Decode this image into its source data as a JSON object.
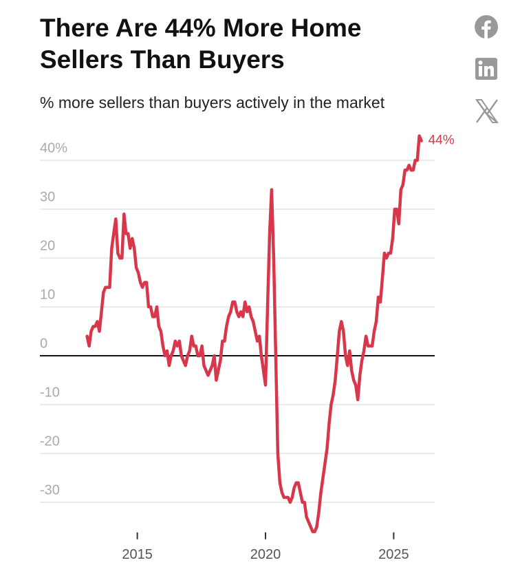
{
  "chart_data": {
    "type": "line",
    "title": "There Are 44% More Home Sellers Than Buyers",
    "subtitle": "% more sellers than buyers actively in the market",
    "xlim": [
      2011.2,
      2026.6
    ],
    "xticks": [
      2015,
      2020,
      2025
    ],
    "ylim": [
      -37,
      46
    ],
    "yticks": [
      {
        "value": 40,
        "label": "40%"
      },
      30,
      20,
      10,
      0,
      -10,
      -20,
      -30
    ],
    "grid": true,
    "series": [
      {
        "name": "% more sellers than buyers",
        "color": "#d8364b",
        "x": [
          2013.04,
          2013.12,
          2013.2,
          2013.28,
          2013.36,
          2013.44,
          2013.52,
          2013.6,
          2013.68,
          2013.76,
          2013.84,
          2013.92,
          2014,
          2014.08,
          2014.16,
          2014.24,
          2014.32,
          2014.4,
          2014.48,
          2014.56,
          2014.64,
          2014.72,
          2014.8,
          2014.88,
          2014.96,
          2015.04,
          2015.12,
          2015.2,
          2015.28,
          2015.36,
          2015.44,
          2015.52,
          2015.6,
          2015.68,
          2015.76,
          2015.84,
          2015.92,
          2016,
          2016.08,
          2016.16,
          2016.24,
          2016.32,
          2016.4,
          2016.48,
          2016.56,
          2016.64,
          2016.72,
          2016.8,
          2016.88,
          2016.96,
          2017.04,
          2017.12,
          2017.2,
          2017.28,
          2017.36,
          2017.44,
          2017.52,
          2017.6,
          2017.68,
          2017.76,
          2017.84,
          2017.92,
          2018,
          2018.08,
          2018.16,
          2018.24,
          2018.32,
          2018.4,
          2018.48,
          2018.56,
          2018.64,
          2018.72,
          2018.8,
          2018.88,
          2018.96,
          2019.04,
          2019.12,
          2019.2,
          2019.28,
          2019.36,
          2019.44,
          2019.52,
          2019.6,
          2019.68,
          2019.76,
          2019.84,
          2019.92,
          2020,
          2020.08,
          2020.16,
          2020.24,
          2020.32,
          2020.4,
          2020.48,
          2020.56,
          2020.64,
          2020.72,
          2020.8,
          2020.88,
          2020.96,
          2021.04,
          2021.12,
          2021.2,
          2021.28,
          2021.36,
          2021.44,
          2021.52,
          2021.6,
          2021.68,
          2021.76,
          2021.84,
          2021.92,
          2022,
          2022.08,
          2022.16,
          2022.24,
          2022.32,
          2022.4,
          2022.48,
          2022.56,
          2022.64,
          2022.72,
          2022.8,
          2022.88,
          2022.96,
          2023.04,
          2023.12,
          2023.2,
          2023.28,
          2023.36,
          2023.44,
          2023.52,
          2023.6,
          2023.68,
          2023.76,
          2023.84,
          2023.92,
          2024,
          2024.08,
          2024.16,
          2024.24,
          2024.32,
          2024.4,
          2024.48,
          2024.56,
          2024.64,
          2024.72,
          2024.8,
          2024.88,
          2024.96,
          2025.04,
          2025.12,
          2025.2,
          2025.28,
          2025.36,
          2025.44,
          2025.52,
          2025.6,
          2025.68,
          2025.76,
          2025.84,
          2025.92,
          2026,
          2026.08
        ],
        "values": [
          4,
          2,
          5,
          6,
          6,
          7,
          5,
          9,
          13,
          14,
          14,
          14,
          22,
          25,
          28,
          21,
          20,
          20,
          29,
          25,
          25,
          22,
          24,
          22,
          18,
          17,
          15,
          14,
          15,
          15,
          10,
          10,
          8,
          8,
          10,
          6,
          5,
          2,
          0,
          1,
          -2,
          0,
          1,
          3,
          2,
          3,
          0,
          -1,
          -2,
          0,
          1,
          4,
          2,
          2,
          0,
          0,
          2,
          -2,
          -3,
          -4,
          -3,
          -2,
          0,
          -5,
          -3,
          -1,
          3,
          3,
          6,
          8,
          9,
          11,
          11,
          9,
          8,
          9,
          8,
          11,
          9,
          10,
          8,
          7,
          5,
          3,
          4,
          0,
          -3,
          -6,
          10,
          25,
          34,
          20,
          0,
          -20,
          -26,
          -28,
          -29,
          -29,
          -29,
          -30,
          -29,
          -27,
          -26,
          -26,
          -28,
          -30,
          -30,
          -33,
          -34,
          -35,
          -36,
          -36,
          -35,
          -32,
          -28,
          -25,
          -22,
          -19,
          -14,
          -10,
          -8,
          -5,
          0,
          5,
          7,
          5,
          0,
          -2,
          1,
          -3,
          -5,
          -6,
          -9,
          -4,
          -1,
          1,
          4,
          2,
          2,
          2,
          5,
          7,
          12,
          11,
          16,
          21,
          20,
          21,
          21,
          24,
          30,
          30,
          27,
          34,
          35,
          38,
          38,
          39,
          38,
          38,
          40,
          40,
          45,
          44
        ],
        "value_labels": [
          null,
          null,
          null,
          null,
          null,
          null,
          null,
          null,
          null,
          null,
          null,
          null,
          null,
          null,
          null,
          null,
          null,
          null,
          null,
          null,
          null,
          null,
          null,
          null,
          null,
          null,
          null,
          null,
          null,
          null,
          null,
          null,
          null,
          null,
          null,
          null,
          null,
          null,
          null,
          null,
          null,
          null,
          null,
          null,
          null,
          null,
          null,
          null,
          null,
          null,
          null,
          null,
          null,
          null,
          null,
          null,
          null,
          null,
          null,
          null,
          null,
          null,
          null,
          null,
          null,
          null,
          null,
          null,
          null,
          null,
          null,
          null,
          null,
          null,
          null,
          null,
          null,
          null,
          null,
          null,
          null,
          null,
          null,
          null,
          null,
          null,
          null,
          null,
          null,
          null,
          null,
          null,
          null,
          null,
          null,
          null,
          null,
          null,
          null,
          null,
          null,
          null,
          null,
          null,
          null,
          null,
          null,
          null,
          null,
          null,
          null,
          null,
          null,
          null,
          null,
          null,
          null,
          null,
          null,
          null,
          null,
          null,
          null,
          null,
          null,
          null,
          null,
          null,
          null,
          null,
          null,
          null,
          null,
          null,
          null,
          null,
          null,
          null,
          null,
          null,
          null,
          null,
          null,
          null,
          null,
          null,
          null,
          null,
          null,
          null,
          null,
          null,
          null,
          null,
          null,
          null,
          null,
          null,
          null,
          null,
          null,
          null,
          null,
          "44%"
        ]
      }
    ]
  }
}
